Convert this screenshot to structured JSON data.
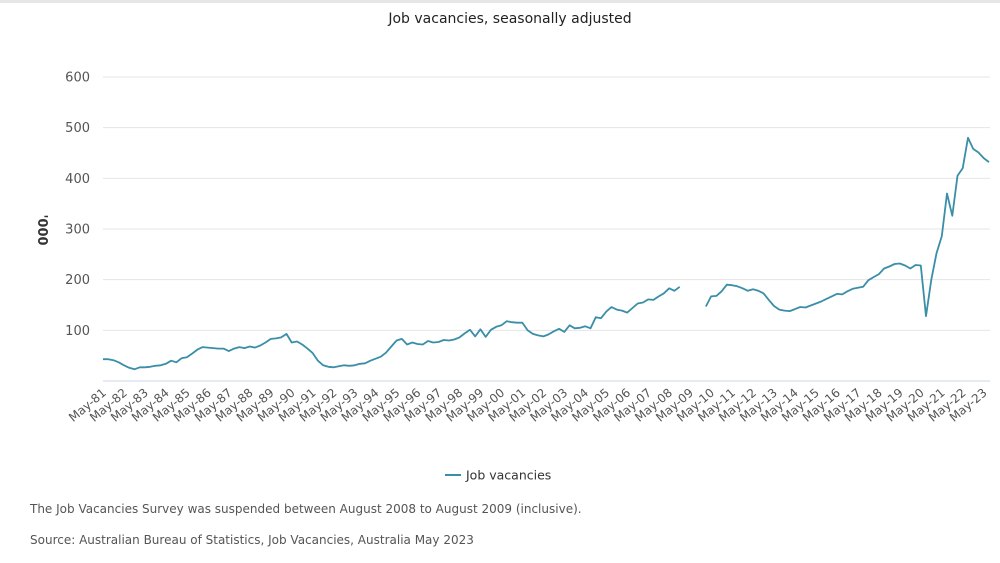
{
  "chart_data": {
    "type": "line",
    "title": "Job vacancies, seasonally adjusted",
    "xlabel": "",
    "ylabel": "'000",
    "ylim": [
      0,
      650
    ],
    "yticks": [
      100,
      200,
      300,
      400,
      500,
      600
    ],
    "x_start_year": 1981,
    "x_end_year": 2023,
    "categories": [
      "May-81",
      "May-82",
      "May-83",
      "May-84",
      "May-85",
      "May-86",
      "May-87",
      "May-88",
      "May-89",
      "May-90",
      "May-91",
      "May-92",
      "May-93",
      "May-94",
      "May-95",
      "May-96",
      "May-97",
      "May-98",
      "May-99",
      "May-00",
      "May-01",
      "May-02",
      "May-03",
      "May-04",
      "May-05",
      "May-06",
      "May-07",
      "May-08",
      "May-09",
      "May-10",
      "May-11",
      "May-12",
      "May-13",
      "May-14",
      "May-15",
      "May-16",
      "May-17",
      "May-18",
      "May-19",
      "May-20",
      "May-21",
      "May-22",
      "May-23"
    ],
    "series": [
      {
        "name": "Job vacancies",
        "color": "#3a8ea8",
        "points": [
          [
            1981.0,
            43
          ],
          [
            1981.25,
            43
          ],
          [
            1981.5,
            41
          ],
          [
            1981.75,
            37
          ],
          [
            1982.0,
            31
          ],
          [
            1982.25,
            26
          ],
          [
            1982.5,
            23
          ],
          [
            1982.75,
            27
          ],
          [
            1983.0,
            27
          ],
          [
            1983.25,
            28
          ],
          [
            1983.5,
            30
          ],
          [
            1983.75,
            31
          ],
          [
            1984.0,
            34
          ],
          [
            1984.25,
            40
          ],
          [
            1984.5,
            37
          ],
          [
            1984.75,
            45
          ],
          [
            1985.0,
            47
          ],
          [
            1985.25,
            54
          ],
          [
            1985.5,
            62
          ],
          [
            1985.75,
            67
          ],
          [
            1986.0,
            66
          ],
          [
            1986.25,
            65
          ],
          [
            1986.5,
            64
          ],
          [
            1986.75,
            64
          ],
          [
            1987.0,
            59
          ],
          [
            1987.25,
            64
          ],
          [
            1987.5,
            67
          ],
          [
            1987.75,
            65
          ],
          [
            1988.0,
            68
          ],
          [
            1988.25,
            66
          ],
          [
            1988.5,
            70
          ],
          [
            1988.75,
            76
          ],
          [
            1989.0,
            83
          ],
          [
            1989.25,
            84
          ],
          [
            1989.5,
            86
          ],
          [
            1989.75,
            93
          ],
          [
            1990.0,
            76
          ],
          [
            1990.25,
            78
          ],
          [
            1990.5,
            72
          ],
          [
            1990.75,
            64
          ],
          [
            1991.0,
            55
          ],
          [
            1991.25,
            40
          ],
          [
            1991.5,
            31
          ],
          [
            1991.75,
            28
          ],
          [
            1992.0,
            27
          ],
          [
            1992.25,
            29
          ],
          [
            1992.5,
            31
          ],
          [
            1992.75,
            30
          ],
          [
            1993.0,
            31
          ],
          [
            1993.25,
            34
          ],
          [
            1993.5,
            35
          ],
          [
            1993.75,
            40
          ],
          [
            1994.0,
            44
          ],
          [
            1994.25,
            48
          ],
          [
            1994.5,
            56
          ],
          [
            1994.75,
            68
          ],
          [
            1995.0,
            80
          ],
          [
            1995.25,
            83
          ],
          [
            1995.5,
            72
          ],
          [
            1995.75,
            76
          ],
          [
            1996.0,
            73
          ],
          [
            1996.25,
            72
          ],
          [
            1996.5,
            79
          ],
          [
            1996.75,
            76
          ],
          [
            1997.0,
            77
          ],
          [
            1997.25,
            81
          ],
          [
            1997.5,
            80
          ],
          [
            1997.75,
            82
          ],
          [
            1998.0,
            86
          ],
          [
            1998.25,
            94
          ],
          [
            1998.5,
            101
          ],
          [
            1998.75,
            88
          ],
          [
            1999.0,
            102
          ],
          [
            1999.25,
            87
          ],
          [
            1999.5,
            101
          ],
          [
            1999.75,
            107
          ],
          [
            2000.0,
            110
          ],
          [
            2000.25,
            118
          ],
          [
            2000.5,
            116
          ],
          [
            2000.75,
            115
          ],
          [
            2001.0,
            115
          ],
          [
            2001.25,
            100
          ],
          [
            2001.5,
            93
          ],
          [
            2001.75,
            90
          ],
          [
            2002.0,
            88
          ],
          [
            2002.25,
            92
          ],
          [
            2002.5,
            98
          ],
          [
            2002.75,
            103
          ],
          [
            2003.0,
            97
          ],
          [
            2003.25,
            110
          ],
          [
            2003.5,
            104
          ],
          [
            2003.75,
            105
          ],
          [
            2004.0,
            108
          ],
          [
            2004.25,
            104
          ],
          [
            2004.5,
            126
          ],
          [
            2004.75,
            124
          ],
          [
            2005.0,
            137
          ],
          [
            2005.25,
            146
          ],
          [
            2005.5,
            141
          ],
          [
            2005.75,
            139
          ],
          [
            2006.0,
            135
          ],
          [
            2006.25,
            144
          ],
          [
            2006.5,
            153
          ],
          [
            2006.75,
            155
          ],
          [
            2007.0,
            161
          ],
          [
            2007.25,
            160
          ],
          [
            2007.5,
            167
          ],
          [
            2007.75,
            173
          ],
          [
            2008.0,
            183
          ],
          [
            2008.25,
            178
          ],
          [
            2008.5,
            186
          ],
          null,
          [
            2009.75,
            147
          ],
          [
            2010.0,
            167
          ],
          [
            2010.25,
            168
          ],
          [
            2010.5,
            177
          ],
          [
            2010.75,
            190
          ],
          [
            2011.0,
            189
          ],
          [
            2011.25,
            187
          ],
          [
            2011.5,
            183
          ],
          [
            2011.75,
            178
          ],
          [
            2012.0,
            181
          ],
          [
            2012.25,
            178
          ],
          [
            2012.5,
            173
          ],
          [
            2012.75,
            160
          ],
          [
            2013.0,
            148
          ],
          [
            2013.25,
            141
          ],
          [
            2013.5,
            139
          ],
          [
            2013.75,
            138
          ],
          [
            2014.0,
            142
          ],
          [
            2014.25,
            146
          ],
          [
            2014.5,
            145
          ],
          [
            2014.75,
            149
          ],
          [
            2015.0,
            153
          ],
          [
            2015.25,
            157
          ],
          [
            2015.5,
            162
          ],
          [
            2015.75,
            167
          ],
          [
            2016.0,
            172
          ],
          [
            2016.25,
            171
          ],
          [
            2016.5,
            177
          ],
          [
            2016.75,
            182
          ],
          [
            2017.0,
            184
          ],
          [
            2017.25,
            186
          ],
          [
            2017.5,
            199
          ],
          [
            2017.75,
            205
          ],
          [
            2018.0,
            211
          ],
          [
            2018.25,
            222
          ],
          [
            2018.5,
            226
          ],
          [
            2018.75,
            231
          ],
          [
            2019.0,
            232
          ],
          [
            2019.25,
            228
          ],
          [
            2019.5,
            222
          ],
          [
            2019.75,
            229
          ],
          [
            2020.0,
            228
          ],
          [
            2020.25,
            128
          ],
          [
            2020.5,
            200
          ],
          [
            2020.75,
            252
          ],
          [
            2021.0,
            286
          ],
          [
            2021.25,
            370
          ],
          [
            2021.5,
            326
          ],
          [
            2021.75,
            405
          ],
          [
            2022.0,
            420
          ],
          [
            2022.25,
            480
          ],
          [
            2022.5,
            458
          ],
          [
            2022.75,
            451
          ],
          [
            2023.0,
            440
          ],
          [
            2023.25,
            432
          ]
        ]
      }
    ],
    "legend": {
      "position": "bottom-center",
      "entries": [
        "Job vacancies"
      ]
    },
    "grid": true
  },
  "notes": {
    "suspension": "The Job Vacancies Survey was suspended between August 2008 to August 2009 (inclusive).",
    "source": "Source: Australian Bureau of Statistics, Job Vacancies, Australia May 2023"
  }
}
